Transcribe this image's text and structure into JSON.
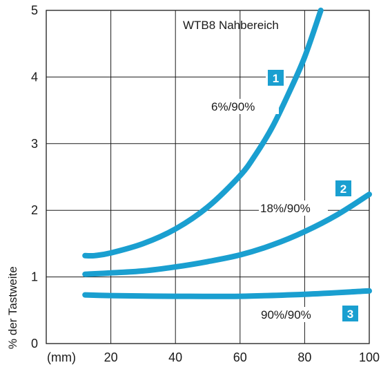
{
  "chart_data": {
    "type": "line",
    "title": "WTB8 Nahbereich",
    "xlabel": "(mm)",
    "ylabel": "% der Tastweite",
    "xlim": [
      0,
      100
    ],
    "ylim": [
      0,
      5
    ],
    "x_ticks": [
      "20",
      "40",
      "60",
      "80",
      "100"
    ],
    "y_ticks": [
      "0",
      "1",
      "2",
      "3",
      "4",
      "5"
    ],
    "grid": true,
    "series": [
      {
        "badge": "1",
        "name": "6%/90%",
        "color": "#1a9fd0",
        "x": [
          12,
          15,
          20,
          30,
          40,
          50,
          60,
          65,
          70,
          75,
          80,
          85
        ],
        "y": [
          1.32,
          1.32,
          1.36,
          1.5,
          1.72,
          2.05,
          2.52,
          2.85,
          3.25,
          3.75,
          4.3,
          5.0
        ]
      },
      {
        "badge": "2",
        "name": "18%/90%",
        "color": "#1a9fd0",
        "x": [
          12,
          20,
          30,
          40,
          50,
          60,
          70,
          80,
          90,
          100
        ],
        "y": [
          1.04,
          1.06,
          1.09,
          1.15,
          1.23,
          1.33,
          1.48,
          1.68,
          1.93,
          2.24
        ]
      },
      {
        "badge": "3",
        "name": "90%/90%",
        "color": "#1a9fd0",
        "x": [
          12,
          20,
          40,
          60,
          80,
          100
        ],
        "y": [
          0.73,
          0.72,
          0.71,
          0.71,
          0.74,
          0.79
        ]
      }
    ]
  },
  "colors": {
    "line": "#1a9fd0",
    "badge": "#1a9fd0",
    "grid": "#1a1a1a"
  }
}
